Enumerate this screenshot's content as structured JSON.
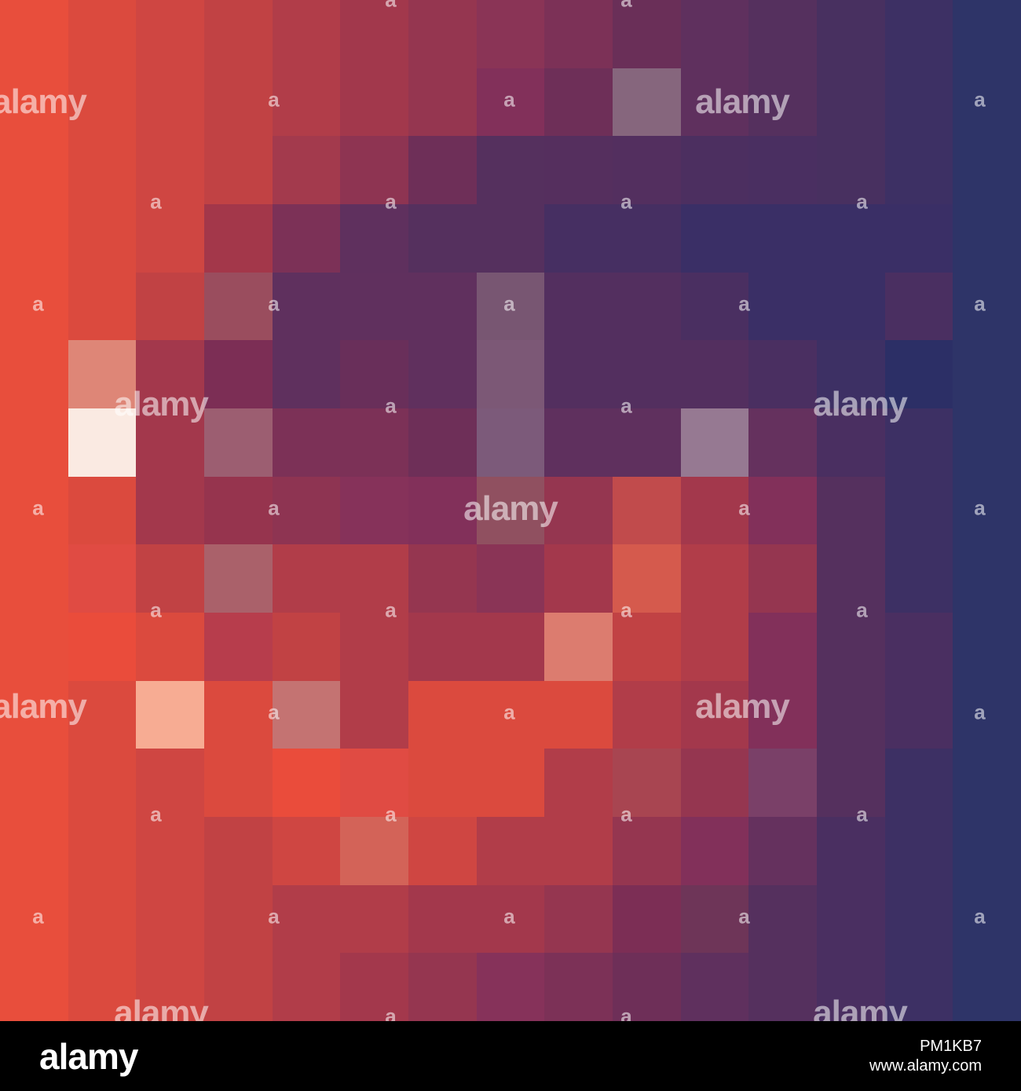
{
  "image": {
    "mosaic": {
      "rows": [
        [
          "#E84E3C",
          "#DB4A3E",
          "#CF4642",
          "#C14244",
          "#B13D49",
          "#A2384C",
          "#953650",
          "#8A3456",
          "#7C3157",
          "#6A2F58",
          "#5F305E",
          "#55305E",
          "#483060",
          "#3D3064",
          "#2E3468"
        ],
        [
          "#E84E3C",
          "#DB4A3E",
          "#CF4642",
          "#C14244",
          "#B13D49",
          "#A2384C",
          "#953650",
          "#82305A",
          "#6E2F58",
          "#86667D",
          "#5F305E",
          "#55305E",
          "#483060",
          "#3D3064",
          "#2E3468"
        ],
        [
          "#E84E3C",
          "#DB4A3E",
          "#CF4642",
          "#C14244",
          "#A33A4D",
          "#8E3452",
          "#6E2F58",
          "#55305E",
          "#552F5E",
          "#532F5F",
          "#4C2F60",
          "#4A2F61",
          "#483060",
          "#3D3064",
          "#2E3468"
        ],
        [
          "#E84E3C",
          "#DB4A3E",
          "#CF4642",
          "#A3374A",
          "#7C3157",
          "#5F305E",
          "#55305E",
          "#55305E",
          "#462F62",
          "#462F62",
          "#3A2F66",
          "#3A2F66",
          "#3A2F66",
          "#3A2F66",
          "#2E3468"
        ],
        [
          "#E84E3C",
          "#DB4A3E",
          "#C14244",
          "#9A4D5E",
          "#5F305E",
          "#60305E",
          "#60305E",
          "#785672",
          "#532F5F",
          "#532F5F",
          "#4A2F61",
          "#3A2F66",
          "#3A2F66",
          "#4A2F61",
          "#2E3468"
        ],
        [
          "#E84E3C",
          "#DE8677",
          "#A3384C",
          "#7C2E55",
          "#5F305E",
          "#692F5A",
          "#60305E",
          "#7C5876",
          "#532F5F",
          "#532F5F",
          "#532F5F",
          "#4A2F61",
          "#3D3064",
          "#2C2F66",
          "#2E3468"
        ],
        [
          "#E84E3C",
          "#FAEAE2",
          "#A3384C",
          "#9C5E71",
          "#7C3157",
          "#7C3157",
          "#6E2F58",
          "#7C5A7A",
          "#5F305E",
          "#5F305E",
          "#967992",
          "#65315E",
          "#4A2F61",
          "#3D3064",
          "#2E3468"
        ],
        [
          "#E84E3C",
          "#DB4A3E",
          "#A3384C",
          "#96344E",
          "#8E3452",
          "#86325A",
          "#82305A",
          "#905060",
          "#953650",
          "#C14B4C",
          "#A3384C",
          "#82305A",
          "#55305E",
          "#3D3064",
          "#2E3468"
        ],
        [
          "#E84E3C",
          "#E04B43",
          "#C14244",
          "#AA616A",
          "#B13D49",
          "#B13D49",
          "#953650",
          "#8A3456",
          "#A3384C",
          "#D55A4D",
          "#B13D49",
          "#953650",
          "#55305E",
          "#3D3064",
          "#2E3468"
        ],
        [
          "#E84E3C",
          "#EA4C3B",
          "#DB4A3E",
          "#B73D4C",
          "#C14244",
          "#B13D49",
          "#A3384C",
          "#A3384C",
          "#DC7C6F",
          "#C14244",
          "#B13D49",
          "#82305A",
          "#55305E",
          "#4A2F61",
          "#2E3468"
        ],
        [
          "#E84E3C",
          "#DB4A3E",
          "#F7AC93",
          "#DB4A3E",
          "#C47372",
          "#B13D49",
          "#DB4A3E",
          "#DB4A3E",
          "#DB4A3E",
          "#B13D49",
          "#A3384C",
          "#82305A",
          "#55305E",
          "#4A2F61",
          "#2E3468"
        ],
        [
          "#E84E3C",
          "#DB4A3E",
          "#CF4642",
          "#DB4A3E",
          "#EA4C3B",
          "#E04B43",
          "#DB4A3E",
          "#DB4A3E",
          "#B13D49",
          "#A84551",
          "#953650",
          "#7A4068",
          "#55305E",
          "#3D3064",
          "#2E3468"
        ],
        [
          "#E84E3C",
          "#DB4A3E",
          "#CF4642",
          "#C14244",
          "#CF4642",
          "#D36358",
          "#CF4642",
          "#B13D49",
          "#B13D49",
          "#953650",
          "#82305A",
          "#65315E",
          "#4A2F61",
          "#3D3064",
          "#2E3468"
        ],
        [
          "#E84E3C",
          "#DB4A3E",
          "#CF4642",
          "#C14244",
          "#B13D49",
          "#B13D49",
          "#A3384C",
          "#A3384C",
          "#953650",
          "#7C2E55",
          "#6E3558",
          "#55305E",
          "#4A2F61",
          "#3D3064",
          "#2E3468"
        ],
        [
          "#E84E3C",
          "#DB4A3E",
          "#CF4642",
          "#C14244",
          "#B13D49",
          "#A3384C",
          "#953650",
          "#86325A",
          "#7C3157",
          "#6E2F58",
          "#5F305E",
          "#55305E",
          "#4A2F61",
          "#3D3064",
          "#2E3468"
        ]
      ]
    },
    "watermark_text": "alamy",
    "watermark_small_text": "a"
  },
  "footer": {
    "logo": "alamy",
    "image_id": "PM1KB7",
    "site": "www.alamy.com"
  }
}
